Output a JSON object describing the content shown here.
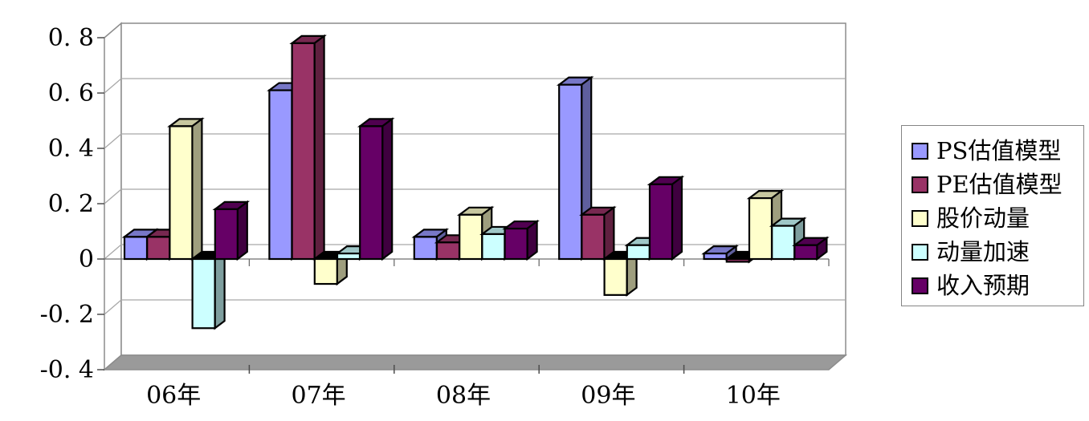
{
  "chart_data": {
    "type": "bar",
    "projection": "3d",
    "title": "",
    "xlabel": "",
    "ylabel": "",
    "categories": [
      "06年",
      "07年",
      "08年",
      "09年",
      "10年"
    ],
    "series": [
      {
        "name": "PS估值模型",
        "color": "#9999FF",
        "values": [
          0.08,
          0.61,
          0.08,
          0.63,
          0.02
        ]
      },
      {
        "name": "PE估值模型",
        "color": "#993366",
        "values": [
          0.08,
          0.78,
          0.06,
          0.16,
          -0.01
        ]
      },
      {
        "name": "股价动量",
        "color": "#FFFFCC",
        "values": [
          0.48,
          -0.09,
          0.16,
          -0.13,
          0.22
        ]
      },
      {
        "name": "动量加速",
        "color": "#CCFFFF",
        "values": [
          -0.25,
          0.02,
          0.09,
          0.05,
          0.12
        ]
      },
      {
        "name": "收入预期",
        "color": "#660066",
        "values": [
          0.18,
          0.48,
          0.11,
          0.27,
          0.05
        ]
      }
    ],
    "ylim": [
      -0.4,
      0.8
    ],
    "y_tick_interval": 0.2,
    "y_tick_values": [
      0.8,
      0.6,
      0.4,
      0.2,
      0,
      -0.2,
      -0.4
    ],
    "y_tick_labels": [
      "0. 8",
      "0. 6",
      "0. 4",
      "0. 2",
      "0",
      "-0. 2",
      "-0. 4"
    ],
    "grid": true,
    "legend_position": "right",
    "colors": {
      "floor": "#9A9A9A",
      "wall": "#FFFFFF",
      "wall_border": "#8C8C8C",
      "gridline": "#A8A8A8",
      "axis_tick": "#4D4D4D",
      "zero_line": "#6E6E6E",
      "negative_cap": "#000000",
      "bar_outline": "#000000",
      "text": "#000000"
    }
  }
}
